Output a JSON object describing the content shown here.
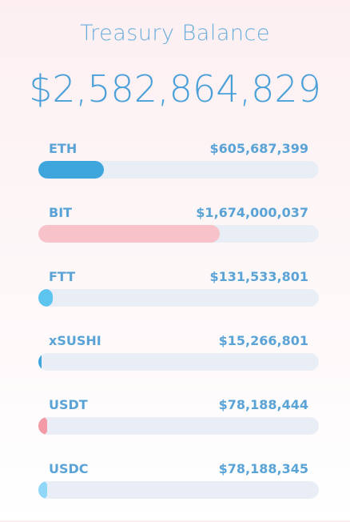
{
  "title": "Treasury Balance",
  "total": "$2,582,864,829",
  "tokens": [
    {
      "symbol": "ETH",
      "amount": "$605,687,399",
      "share": 0.2345,
      "color": "#3ea6dc"
    },
    {
      "symbol": "BIT",
      "amount": "$1,674,000,037",
      "share": 0.6481,
      "color": "#f8c2ca"
    },
    {
      "symbol": "FTT",
      "amount": "$131,533,801",
      "share": 0.0509,
      "color": "#5cc4ef"
    },
    {
      "symbol": "xSUSHI",
      "amount": "$15,266,801",
      "share": 0.0059,
      "color": "#3ea6dc"
    },
    {
      "symbol": "USDT",
      "amount": "$78,188,444",
      "share": 0.0303,
      "color": "#f49aa6"
    },
    {
      "symbol": "USDC",
      "amount": "$78,188,345",
      "share": 0.0303,
      "color": "#8fd6f7"
    }
  ]
}
